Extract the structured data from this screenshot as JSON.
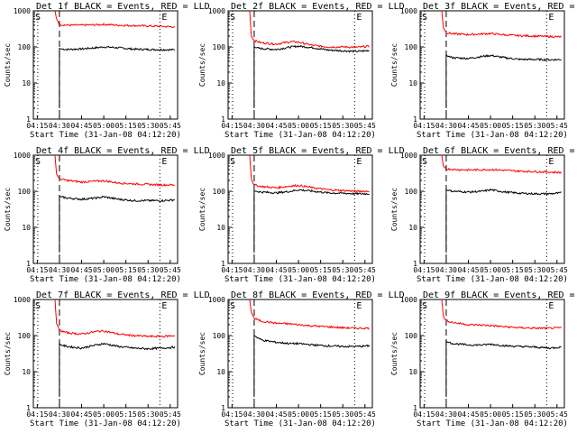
{
  "chart_data": [
    {
      "type": "line",
      "title": "Det 1f BLACK = Events, RED = LLD",
      "xlabel": "Start Time (31-Jan-08 04:12:20)",
      "ylabel": "Counts/sec",
      "x_ticks": [
        "04:15",
        "04:30",
        "04:45",
        "05:00",
        "05:15",
        "05:30",
        "05:45"
      ],
      "y_ticks": [
        "1",
        "10",
        "100",
        "1000"
      ],
      "ylim": [
        1,
        1000
      ],
      "scale": "log",
      "markers": [
        "S",
        "E"
      ],
      "series": [
        {
          "color": "#000000",
          "t": [
            "04:30",
            "04:31",
            "04:35",
            "04:45",
            "04:55",
            "05:00",
            "05:10",
            "05:20",
            "05:30",
            "05:40",
            "05:48"
          ],
          "values": [
            90,
            88,
            85,
            88,
            95,
            100,
            95,
            87,
            85,
            84,
            83
          ]
        },
        {
          "color": "#ff0000",
          "t": [
            "04:27",
            "04:28",
            "04:30",
            "04:35",
            "04:45",
            "04:55",
            "05:00",
            "05:10",
            "05:20",
            "05:30",
            "05:40",
            "05:48"
          ],
          "values": [
            1000,
            600,
            420,
            400,
            400,
            410,
            420,
            400,
            390,
            380,
            370,
            360
          ]
        }
      ]
    },
    {
      "type": "line",
      "title": "Det 2f BLACK = Events, RED = LLD",
      "xlabel": "Start Time (31-Jan-08 04:12:20)",
      "ylabel": "Counts/sec",
      "x_ticks": [
        "04:15",
        "04:30",
        "04:45",
        "05:00",
        "05:15",
        "05:30",
        "05:45"
      ],
      "y_ticks": [
        "1",
        "10",
        "100",
        "1000"
      ],
      "ylim": [
        1,
        1000
      ],
      "scale": "log",
      "markers": [
        "S",
        "E"
      ],
      "series": [
        {
          "color": "#000000",
          "t": [
            "04:30",
            "04:31",
            "04:35",
            "04:45",
            "04:55",
            "05:00",
            "05:10",
            "05:20",
            "05:30",
            "05:40",
            "05:48"
          ],
          "values": [
            100,
            95,
            90,
            85,
            100,
            105,
            95,
            82,
            78,
            75,
            80
          ]
        },
        {
          "color": "#ff0000",
          "t": [
            "04:27",
            "04:28",
            "04:30",
            "04:35",
            "04:45",
            "04:55",
            "05:00",
            "05:10",
            "05:20",
            "05:30",
            "05:40",
            "05:48"
          ],
          "values": [
            1000,
            200,
            150,
            130,
            120,
            140,
            135,
            110,
            100,
            100,
            98,
            105
          ]
        }
      ]
    },
    {
      "type": "line",
      "title": "Det 3f BLACK = Events, RED = LLD",
      "xlabel": "Start Time (31-Jan-08 04:12:20)",
      "ylabel": "Counts/sec",
      "x_ticks": [
        "04:15",
        "04:30",
        "04:45",
        "05:00",
        "05:15",
        "05:30",
        "05:45"
      ],
      "y_ticks": [
        "1",
        "10",
        "100",
        "1000"
      ],
      "ylim": [
        1,
        1000
      ],
      "scale": "log",
      "markers": [
        "S",
        "E"
      ],
      "series": [
        {
          "color": "#000000",
          "t": [
            "04:30",
            "04:31",
            "04:35",
            "04:45",
            "04:55",
            "05:00",
            "05:10",
            "05:20",
            "05:30",
            "05:40",
            "05:48"
          ],
          "values": [
            60,
            55,
            50,
            48,
            55,
            58,
            50,
            45,
            45,
            44,
            45
          ]
        },
        {
          "color": "#ff0000",
          "t": [
            "04:27",
            "04:28",
            "04:30",
            "04:35",
            "04:45",
            "04:55",
            "05:00",
            "05:10",
            "05:20",
            "05:30",
            "05:40",
            "05:48"
          ],
          "values": [
            1000,
            350,
            250,
            230,
            220,
            230,
            235,
            215,
            205,
            200,
            195,
            190
          ]
        }
      ]
    },
    {
      "type": "line",
      "title": "Det 4f BLACK = Events, RED = LLD",
      "xlabel": "Start Time (31-Jan-08 04:12:20)",
      "ylabel": "Counts/sec",
      "x_ticks": [
        "04:15",
        "04:30",
        "04:45",
        "05:00",
        "05:15",
        "05:30",
        "05:45"
      ],
      "y_ticks": [
        "1",
        "10",
        "100",
        "1000"
      ],
      "ylim": [
        1,
        1000
      ],
      "scale": "log",
      "markers": [
        "S",
        "E"
      ],
      "series": [
        {
          "color": "#000000",
          "t": [
            "04:30",
            "04:31",
            "04:35",
            "04:45",
            "04:55",
            "05:00",
            "05:10",
            "05:20",
            "05:30",
            "05:40",
            "05:48"
          ],
          "values": [
            75,
            70,
            65,
            60,
            65,
            70,
            60,
            55,
            55,
            55,
            58
          ]
        },
        {
          "color": "#ff0000",
          "t": [
            "04:27",
            "04:28",
            "04:30",
            "04:35",
            "04:45",
            "04:55",
            "05:00",
            "05:10",
            "05:20",
            "05:30",
            "05:40",
            "05:48"
          ],
          "values": [
            1000,
            300,
            220,
            200,
            180,
            190,
            195,
            170,
            160,
            155,
            150,
            150
          ]
        }
      ]
    },
    {
      "type": "line",
      "title": "Det 5f BLACK = Events, RED = LLD",
      "xlabel": "Start Time (31-Jan-08 04:12:20)",
      "ylabel": "Counts/sec",
      "x_ticks": [
        "04:15",
        "04:30",
        "04:45",
        "05:00",
        "05:15",
        "05:30",
        "05:45"
      ],
      "y_ticks": [
        "1",
        "10",
        "100",
        "1000"
      ],
      "ylim": [
        1,
        1000
      ],
      "scale": "log",
      "markers": [
        "S",
        "E"
      ],
      "series": [
        {
          "color": "#000000",
          "t": [
            "04:30",
            "04:31",
            "04:35",
            "04:45",
            "04:55",
            "05:00",
            "05:10",
            "05:20",
            "05:30",
            "05:40",
            "05:48"
          ],
          "values": [
            100,
            100,
            95,
            90,
            100,
            110,
            100,
            90,
            88,
            85,
            85
          ]
        },
        {
          "color": "#ff0000",
          "t": [
            "04:27",
            "04:28",
            "04:30",
            "04:35",
            "04:45",
            "04:55",
            "05:00",
            "05:10",
            "05:20",
            "05:30",
            "05:40",
            "05:48"
          ],
          "values": [
            1000,
            220,
            150,
            135,
            125,
            140,
            145,
            125,
            110,
            105,
            100,
            100
          ]
        }
      ]
    },
    {
      "type": "line",
      "title": "Det 6f BLACK = Events, RED = LLD",
      "xlabel": "Start Time (31-Jan-08 04:12:20)",
      "ylabel": "Counts/sec",
      "x_ticks": [
        "04:15",
        "04:30",
        "04:45",
        "05:00",
        "05:15",
        "05:30",
        "05:45"
      ],
      "y_ticks": [
        "1",
        "10",
        "100",
        "1000"
      ],
      "ylim": [
        1,
        1000
      ],
      "scale": "log",
      "markers": [
        "S",
        "E"
      ],
      "series": [
        {
          "color": "#000000",
          "t": [
            "04:30",
            "04:31",
            "04:35",
            "04:45",
            "04:55",
            "05:00",
            "05:10",
            "05:20",
            "05:30",
            "05:40",
            "05:48"
          ],
          "values": [
            110,
            105,
            100,
            95,
            100,
            110,
            95,
            88,
            85,
            85,
            90
          ]
        },
        {
          "color": "#ff0000",
          "t": [
            "04:27",
            "04:28",
            "04:30",
            "04:35",
            "04:45",
            "04:55",
            "05:00",
            "05:10",
            "05:20",
            "05:30",
            "05:40",
            "05:48"
          ],
          "values": [
            1000,
            500,
            420,
            400,
            390,
            395,
            400,
            380,
            360,
            350,
            340,
            330
          ]
        }
      ]
    },
    {
      "type": "line",
      "title": "Det 7f BLACK = Events, RED = LLD",
      "xlabel": "Start Time (31-Jan-08 04:12:20)",
      "ylabel": "Counts/sec",
      "x_ticks": [
        "04:15",
        "04:30",
        "04:45",
        "05:00",
        "05:15",
        "05:30",
        "05:45"
      ],
      "y_ticks": [
        "1",
        "10",
        "100",
        "1000"
      ],
      "ylim": [
        1,
        1000
      ],
      "scale": "log",
      "markers": [
        "S",
        "E"
      ],
      "series": [
        {
          "color": "#000000",
          "t": [
            "04:30",
            "04:31",
            "04:35",
            "04:45",
            "04:55",
            "05:00",
            "05:10",
            "05:20",
            "05:30",
            "05:40",
            "05:48"
          ],
          "values": [
            60,
            55,
            50,
            45,
            55,
            60,
            50,
            45,
            43,
            45,
            48
          ]
        },
        {
          "color": "#ff0000",
          "t": [
            "04:27",
            "04:28",
            "04:30",
            "04:35",
            "04:45",
            "04:55",
            "05:00",
            "05:10",
            "05:20",
            "05:30",
            "05:40",
            "05:48"
          ],
          "values": [
            1000,
            220,
            140,
            120,
            110,
            130,
            135,
            110,
            100,
            95,
            95,
            100
          ]
        }
      ]
    },
    {
      "type": "line",
      "title": "Det 8f BLACK = Events, RED = LLD",
      "xlabel": "Start Time (31-Jan-08 04:12:20)",
      "ylabel": "Counts/sec",
      "x_ticks": [
        "04:15",
        "04:30",
        "04:45",
        "05:00",
        "05:15",
        "05:30",
        "05:45"
      ],
      "y_ticks": [
        "1",
        "10",
        "100",
        "1000"
      ],
      "ylim": [
        1,
        1000
      ],
      "scale": "log",
      "markers": [
        "S",
        "E"
      ],
      "series": [
        {
          "color": "#000000",
          "t": [
            "04:30",
            "04:31",
            "04:35",
            "04:45",
            "04:55",
            "05:00",
            "05:10",
            "05:20",
            "05:30",
            "05:40",
            "05:48"
          ],
          "values": [
            100,
            95,
            75,
            65,
            60,
            60,
            55,
            52,
            50,
            50,
            52
          ]
        },
        {
          "color": "#ff0000",
          "t": [
            "04:27",
            "04:28",
            "04:30",
            "04:35",
            "04:45",
            "04:55",
            "05:00",
            "05:10",
            "05:20",
            "05:30",
            "05:40",
            "05:48"
          ],
          "values": [
            1000,
            450,
            300,
            250,
            220,
            210,
            200,
            185,
            175,
            165,
            160,
            160
          ]
        }
      ]
    },
    {
      "type": "line",
      "title": "Det 9f BLACK = Events, RED = LLD",
      "xlabel": "Start Time (31-Jan-08 04:12:20)",
      "ylabel": "Counts/sec",
      "x_ticks": [
        "04:15",
        "04:30",
        "04:45",
        "05:00",
        "05:15",
        "05:30",
        "05:45"
      ],
      "y_ticks": [
        "1",
        "10",
        "100",
        "1000"
      ],
      "ylim": [
        1,
        1000
      ],
      "scale": "log",
      "markers": [
        "S",
        "E"
      ],
      "series": [
        {
          "color": "#000000",
          "t": [
            "04:30",
            "04:31",
            "04:35",
            "04:45",
            "04:55",
            "05:00",
            "05:10",
            "05:20",
            "05:30",
            "05:40",
            "05:48"
          ],
          "values": [
            70,
            65,
            60,
            55,
            55,
            58,
            52,
            50,
            48,
            45,
            48
          ]
        },
        {
          "color": "#ff0000",
          "t": [
            "04:27",
            "04:28",
            "04:30",
            "04:35",
            "04:45",
            "04:55",
            "05:00",
            "05:10",
            "05:20",
            "05:30",
            "05:40",
            "05:48"
          ],
          "values": [
            1000,
            350,
            260,
            230,
            200,
            195,
            190,
            175,
            165,
            160,
            160,
            165
          ]
        }
      ]
    }
  ]
}
